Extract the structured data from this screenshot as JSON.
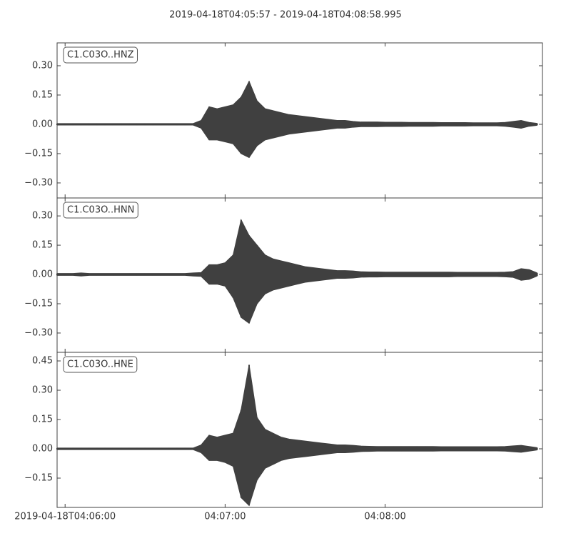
{
  "title": "2019-04-18T04:05:57  -  2019-04-18T04:08:58.995",
  "x": [
    0,
    3,
    6,
    9,
    12,
    15,
    18,
    21,
    24,
    27,
    30,
    33,
    36,
    39,
    42,
    45,
    48,
    51,
    54,
    57,
    60,
    63,
    66,
    69,
    72,
    75,
    78,
    81,
    84,
    87,
    90,
    93,
    96,
    99,
    102,
    105,
    108,
    111,
    114,
    117,
    120,
    123,
    126,
    129,
    132,
    135,
    138,
    141,
    144,
    147,
    150,
    153,
    156,
    159,
    162,
    165,
    168,
    171,
    174,
    177,
    180
  ],
  "xlim": [
    0,
    181.995
  ],
  "xticks": [
    {
      "value": 3,
      "label": "2019-04-18T04:06:00"
    },
    {
      "value": 63,
      "label": "04:07:00"
    },
    {
      "value": 123,
      "label": "04:08:00"
    }
  ],
  "chart_data": [
    {
      "type": "band",
      "ylim": [
        -0.377,
        0.417
      ],
      "yticks": [
        {
          "value": -0.3,
          "label": "−0.30"
        },
        {
          "value": -0.15,
          "label": "−0.15"
        },
        {
          "value": 0,
          "label": "0.00"
        },
        {
          "value": 0.15,
          "label": "0.15"
        },
        {
          "value": 0.3,
          "label": "0.30"
        }
      ],
      "series": [
        {
          "name": "C1.C03O..HNZ",
          "color": "#404040",
          "high": [
            0.004,
            0.004,
            0.004,
            0.004,
            0.004,
            0.004,
            0.004,
            0.004,
            0.004,
            0.004,
            0.004,
            0.004,
            0.004,
            0.004,
            0.004,
            0.004,
            0.004,
            0.004,
            0.02,
            0.09,
            0.08,
            0.09,
            0.1,
            0.14,
            0.22,
            0.12,
            0.08,
            0.07,
            0.06,
            0.05,
            0.045,
            0.04,
            0.035,
            0.03,
            0.025,
            0.02,
            0.02,
            0.015,
            0.012,
            0.012,
            0.012,
            0.011,
            0.011,
            0.011,
            0.01,
            0.01,
            0.01,
            0.01,
            0.009,
            0.009,
            0.009,
            0.009,
            0.008,
            0.008,
            0.008,
            0.008,
            0.01,
            0.015,
            0.02,
            0.01,
            0.005
          ],
          "low": [
            -0.004,
            -0.004,
            -0.004,
            -0.004,
            -0.004,
            -0.004,
            -0.004,
            -0.004,
            -0.004,
            -0.004,
            -0.004,
            -0.004,
            -0.004,
            -0.004,
            -0.004,
            -0.004,
            -0.004,
            -0.004,
            -0.02,
            -0.08,
            -0.08,
            -0.09,
            -0.1,
            -0.15,
            -0.17,
            -0.11,
            -0.08,
            -0.07,
            -0.06,
            -0.05,
            -0.045,
            -0.04,
            -0.035,
            -0.03,
            -0.025,
            -0.02,
            -0.02,
            -0.015,
            -0.012,
            -0.012,
            -0.012,
            -0.011,
            -0.011,
            -0.011,
            -0.01,
            -0.01,
            -0.01,
            -0.01,
            -0.009,
            -0.009,
            -0.009,
            -0.009,
            -0.008,
            -0.008,
            -0.008,
            -0.008,
            -0.01,
            -0.015,
            -0.02,
            -0.01,
            -0.005
          ]
        }
      ]
    },
    {
      "type": "band",
      "ylim": [
        -0.399,
        0.392
      ],
      "yticks": [
        {
          "value": -0.3,
          "label": "−0.30"
        },
        {
          "value": -0.15,
          "label": "−0.15"
        },
        {
          "value": 0,
          "label": "0.00"
        },
        {
          "value": 0.15,
          "label": "0.15"
        },
        {
          "value": 0.3,
          "label": "0.30"
        }
      ],
      "series": [
        {
          "name": "C1.C03O..HNN",
          "color": "#404040",
          "high": [
            0.005,
            0.005,
            0.005,
            0.008,
            0.005,
            0.005,
            0.005,
            0.005,
            0.005,
            0.005,
            0.005,
            0.005,
            0.005,
            0.005,
            0.005,
            0.005,
            0.005,
            0.008,
            0.01,
            0.05,
            0.05,
            0.06,
            0.1,
            0.28,
            0.2,
            0.15,
            0.1,
            0.08,
            0.07,
            0.06,
            0.05,
            0.04,
            0.035,
            0.03,
            0.025,
            0.02,
            0.02,
            0.018,
            0.014,
            0.013,
            0.013,
            0.012,
            0.012,
            0.012,
            0.012,
            0.012,
            0.012,
            0.012,
            0.012,
            0.012,
            0.011,
            0.011,
            0.011,
            0.011,
            0.011,
            0.011,
            0.012,
            0.015,
            0.03,
            0.025,
            0.008
          ],
          "low": [
            -0.005,
            -0.005,
            -0.005,
            -0.008,
            -0.005,
            -0.005,
            -0.005,
            -0.005,
            -0.005,
            -0.005,
            -0.005,
            -0.005,
            -0.005,
            -0.005,
            -0.005,
            -0.005,
            -0.005,
            -0.008,
            -0.01,
            -0.05,
            -0.05,
            -0.06,
            -0.12,
            -0.22,
            -0.25,
            -0.15,
            -0.1,
            -0.08,
            -0.07,
            -0.06,
            -0.05,
            -0.04,
            -0.035,
            -0.03,
            -0.025,
            -0.02,
            -0.02,
            -0.018,
            -0.014,
            -0.013,
            -0.013,
            -0.012,
            -0.012,
            -0.012,
            -0.012,
            -0.012,
            -0.012,
            -0.012,
            -0.012,
            -0.012,
            -0.011,
            -0.011,
            -0.011,
            -0.011,
            -0.011,
            -0.011,
            -0.012,
            -0.015,
            -0.03,
            -0.025,
            -0.008
          ]
        }
      ]
    },
    {
      "type": "band",
      "ylim": [
        -0.3,
        0.494
      ],
      "yticks": [
        {
          "value": -0.15,
          "label": "−0.15"
        },
        {
          "value": 0,
          "label": "0.00"
        },
        {
          "value": 0.15,
          "label": "0.15"
        },
        {
          "value": 0.3,
          "label": "0.30"
        },
        {
          "value": 0.45,
          "label": "0.45"
        }
      ],
      "series": [
        {
          "name": "C1.C03O..HNE",
          "color": "#404040",
          "high": [
            0.004,
            0.004,
            0.004,
            0.004,
            0.004,
            0.004,
            0.004,
            0.004,
            0.004,
            0.004,
            0.004,
            0.004,
            0.004,
            0.004,
            0.004,
            0.004,
            0.004,
            0.004,
            0.02,
            0.07,
            0.06,
            0.07,
            0.08,
            0.2,
            0.43,
            0.16,
            0.1,
            0.08,
            0.06,
            0.05,
            0.045,
            0.04,
            0.035,
            0.03,
            0.025,
            0.02,
            0.02,
            0.018,
            0.014,
            0.013,
            0.012,
            0.012,
            0.012,
            0.012,
            0.012,
            0.012,
            0.012,
            0.012,
            0.011,
            0.011,
            0.011,
            0.011,
            0.011,
            0.011,
            0.011,
            0.011,
            0.012,
            0.015,
            0.018,
            0.012,
            0.006
          ],
          "low": [
            -0.004,
            -0.004,
            -0.004,
            -0.004,
            -0.004,
            -0.004,
            -0.004,
            -0.004,
            -0.004,
            -0.004,
            -0.004,
            -0.004,
            -0.004,
            -0.004,
            -0.004,
            -0.004,
            -0.004,
            -0.004,
            -0.02,
            -0.06,
            -0.06,
            -0.07,
            -0.09,
            -0.25,
            -0.29,
            -0.16,
            -0.1,
            -0.08,
            -0.06,
            -0.05,
            -0.045,
            -0.04,
            -0.035,
            -0.03,
            -0.025,
            -0.02,
            -0.02,
            -0.018,
            -0.014,
            -0.013,
            -0.012,
            -0.012,
            -0.012,
            -0.012,
            -0.012,
            -0.012,
            -0.012,
            -0.012,
            -0.011,
            -0.011,
            -0.011,
            -0.011,
            -0.011,
            -0.011,
            -0.011,
            -0.011,
            -0.012,
            -0.015,
            -0.018,
            -0.012,
            -0.006
          ]
        }
      ]
    }
  ]
}
